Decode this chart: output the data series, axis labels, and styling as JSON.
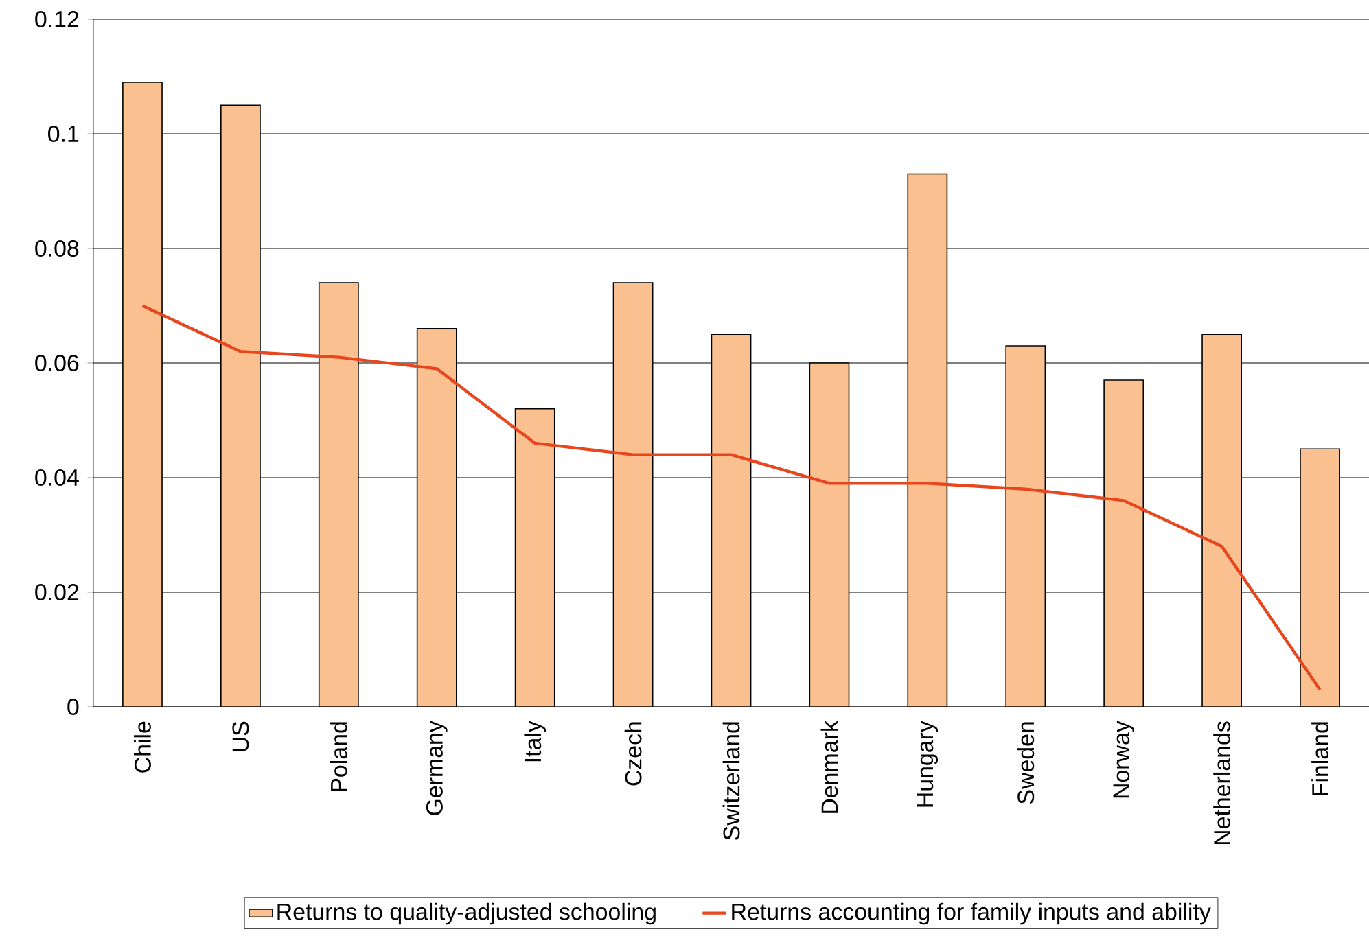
{
  "chart_data": {
    "type": "bar",
    "categories": [
      "Chile",
      "US",
      "Poland",
      "Germany",
      "Italy",
      "Czech",
      "Switzerland",
      "Denmark",
      "Hungary",
      "Sweden",
      "Norway",
      "Netherlands",
      "Finland"
    ],
    "series": [
      {
        "name": "Returns to quality-adjusted schooling",
        "color": "#fac090",
        "values": [
          0.109,
          0.105,
          0.074,
          0.066,
          0.052,
          0.074,
          0.065,
          0.06,
          0.093,
          0.063,
          0.057,
          0.065,
          0.045
        ]
      },
      {
        "name": "Returns accounting for family inputs and ability",
        "type": "line",
        "color": "#e8461e",
        "values": [
          0.07,
          0.062,
          0.061,
          0.059,
          0.046,
          0.044,
          0.044,
          0.039,
          0.039,
          0.038,
          0.036,
          0.028,
          0.003
        ]
      }
    ],
    "ylim": [
      0,
      0.12
    ],
    "yticks": [
      0,
      0.02,
      0.04,
      0.06,
      0.08,
      0.1,
      0.12
    ],
    "grid": "y",
    "legend": "bottom",
    "marker": "none",
    "line_style": "solid"
  }
}
